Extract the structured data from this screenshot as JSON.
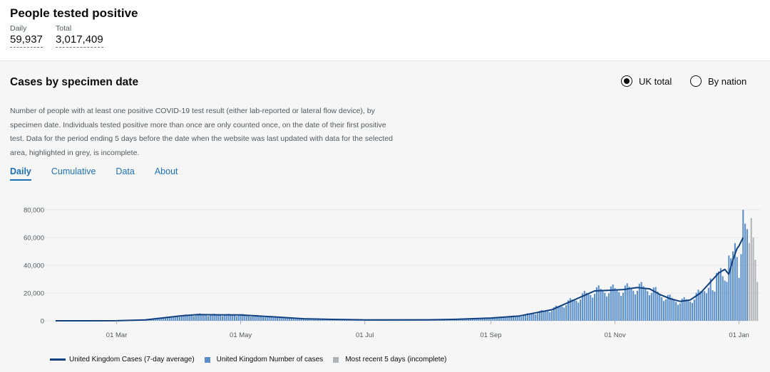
{
  "headline": {
    "title": "People tested positive",
    "daily_label": "Daily",
    "daily_value": "59,937",
    "total_label": "Total",
    "total_value": "3,017,409"
  },
  "card": {
    "title": "Cases by specimen date",
    "radio_options": [
      {
        "label": "UK total",
        "selected": true
      },
      {
        "label": "By nation",
        "selected": false
      }
    ],
    "description": "Number of people with at least one positive COVID-19 test result (either lab-reported or lateral flow device), by specimen date. Individuals tested positive more than once are only counted once, on the date of their first positive test. Data for the period ending 5 days before the date when the website was last updated with data for the selected area, highlighted in grey, is incomplete.",
    "tabs": [
      {
        "label": "Daily",
        "active": true
      },
      {
        "label": "Cumulative",
        "active": false
      },
      {
        "label": "Data",
        "active": false
      },
      {
        "label": "About",
        "active": false
      }
    ]
  },
  "colors": {
    "bar": "#5a8fcc",
    "incomplete": "#b1b4b6",
    "line": "#12407f",
    "accent": "#1d70b8"
  },
  "chart_data": {
    "type": "bar",
    "x_start": "2020-01-31",
    "x_end": "2021-01-05",
    "ylim": [
      0,
      82000
    ],
    "yticks": [
      0,
      20000,
      40000,
      60000,
      80000
    ],
    "ytick_labels": [
      "0",
      "20,000",
      "40,000",
      "60,000",
      "80,000"
    ],
    "xticks": [
      {
        "date": "2020-03-01",
        "label": "01 Mar"
      },
      {
        "date": "2020-05-01",
        "label": "01 May"
      },
      {
        "date": "2020-07-01",
        "label": "01 Jul"
      },
      {
        "date": "2020-09-01",
        "label": "01 Sep"
      },
      {
        "date": "2020-11-01",
        "label": "01 Nov"
      },
      {
        "date": "2021-01-01",
        "label": "01 Jan"
      }
    ],
    "grid": true,
    "legend_position": "bottom",
    "series": [
      {
        "name": "United Kingdom Cases (7-day average)",
        "type": "line",
        "points": [
          [
            "2020-01-31",
            0
          ],
          [
            "2020-03-01",
            50
          ],
          [
            "2020-03-15",
            600
          ],
          [
            "2020-04-01",
            3500
          ],
          [
            "2020-04-10",
            4500
          ],
          [
            "2020-04-20",
            4300
          ],
          [
            "2020-05-01",
            4200
          ],
          [
            "2020-05-15",
            3000
          ],
          [
            "2020-06-01",
            1500
          ],
          [
            "2020-06-15",
            1000
          ],
          [
            "2020-07-01",
            650
          ],
          [
            "2020-08-01",
            700
          ],
          [
            "2020-08-15",
            1100
          ],
          [
            "2020-09-01",
            2000
          ],
          [
            "2020-09-15",
            3500
          ],
          [
            "2020-10-01",
            8000
          ],
          [
            "2020-10-15",
            17000
          ],
          [
            "2020-10-22",
            21500
          ],
          [
            "2020-10-29",
            22000
          ],
          [
            "2020-11-05",
            22500
          ],
          [
            "2020-11-12",
            24000
          ],
          [
            "2020-11-18",
            23000
          ],
          [
            "2020-11-23",
            19000
          ],
          [
            "2020-11-28",
            16000
          ],
          [
            "2020-12-03",
            14000
          ],
          [
            "2020-12-08",
            15000
          ],
          [
            "2020-12-13",
            20000
          ],
          [
            "2020-12-18",
            28000
          ],
          [
            "2020-12-22",
            34500
          ],
          [
            "2020-12-25",
            37000
          ],
          [
            "2020-12-27",
            33500
          ],
          [
            "2020-12-29",
            44000
          ],
          [
            "2020-12-31",
            52000
          ],
          [
            "2021-01-01",
            54000
          ],
          [
            "2021-01-03",
            59937
          ]
        ]
      },
      {
        "name": "United Kingdom Number of cases",
        "type": "bar",
        "description_of_values": "daily counts",
        "points": [
          [
            "2020-12-18",
            30500
          ],
          [
            "2020-12-19",
            22000
          ],
          [
            "2020-12-20",
            21000
          ],
          [
            "2020-12-21",
            34500
          ],
          [
            "2020-12-22",
            35500
          ],
          [
            "2020-12-23",
            38000
          ],
          [
            "2020-12-24",
            32000
          ],
          [
            "2020-12-25",
            29000
          ],
          [
            "2020-12-26",
            28000
          ],
          [
            "2020-12-27",
            47000
          ],
          [
            "2020-12-28",
            45000
          ],
          [
            "2020-12-29",
            50000
          ],
          [
            "2020-12-30",
            56000
          ],
          [
            "2020-12-31",
            46000
          ],
          [
            "2021-01-01",
            31000
          ],
          [
            "2021-01-02",
            48000
          ],
          [
            "2021-01-03",
            80000
          ],
          [
            "2021-01-04",
            70000
          ],
          [
            "2021-01-05",
            66000
          ]
        ]
      },
      {
        "name": "Most recent 5 days (incomplete)",
        "type": "bar",
        "points": [
          [
            "2021-01-06",
            56000
          ],
          [
            "2021-01-07",
            74000
          ],
          [
            "2021-01-08",
            60000
          ],
          [
            "2021-01-09",
            44000
          ],
          [
            "2021-01-10",
            28000
          ]
        ]
      }
    ]
  }
}
